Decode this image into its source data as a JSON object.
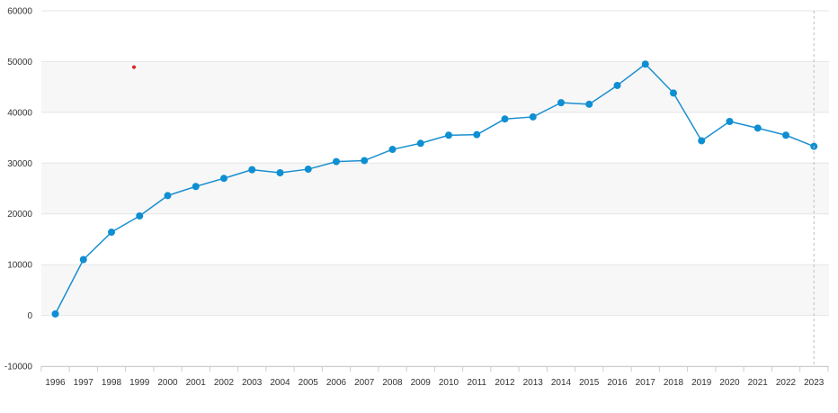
{
  "chart_data": {
    "type": "line",
    "title": "",
    "xlabel": "",
    "ylabel": "",
    "ylim": [
      -10000,
      60000
    ],
    "yticks": [
      -10000,
      0,
      10000,
      20000,
      30000,
      40000,
      50000,
      60000
    ],
    "ytick_labels": [
      "-10000",
      "0",
      "10000",
      "20000",
      "30000",
      "40000",
      "50000",
      "60000"
    ],
    "categories": [
      "1996",
      "1997",
      "1998",
      "1999",
      "2000",
      "2001",
      "2002",
      "2003",
      "2004",
      "2005",
      "2006",
      "2007",
      "2008",
      "2009",
      "2010",
      "2011",
      "2012",
      "2013",
      "2014",
      "2015",
      "2016",
      "2017",
      "2018",
      "2019",
      "2020",
      "2021",
      "2022",
      "2023"
    ],
    "series": [
      {
        "values": [
          300,
          11000,
          16400,
          19600,
          23600,
          25400,
          27000,
          28700,
          28100,
          28800,
          30300,
          30500,
          32700,
          33900,
          35500,
          35600,
          38700,
          39100,
          41900,
          41600,
          45300,
          49500,
          43800,
          34400,
          38200,
          36900,
          35500,
          33300
        ]
      }
    ],
    "marker_points": [
      {
        "x": 1998.8,
        "y": 48900
      }
    ],
    "grid": true,
    "colors": {
      "line": "#1a8fd0",
      "marker": "#0e8fd3",
      "stray_marker": "#e02020",
      "band": "#f7f7f7",
      "gridline": "#e6e6e6",
      "crosshair": "#bdbdbd"
    }
  }
}
